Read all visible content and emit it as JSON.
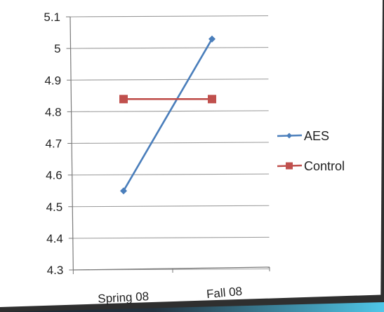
{
  "chart_data": {
    "type": "line",
    "categories": [
      "Spring 08",
      "Fall 08"
    ],
    "series": [
      {
        "name": "AES",
        "values": [
          4.55,
          5.03
        ],
        "color": "#4a7ebb",
        "marker": "diamond"
      },
      {
        "name": "Control",
        "values": [
          4.84,
          4.84
        ],
        "color": "#c0504d",
        "marker": "square"
      }
    ],
    "ylim": [
      4.3,
      5.1
    ],
    "yticks": [
      "4.3",
      "4.4",
      "4.5",
      "4.6",
      "4.7",
      "4.8",
      "4.9",
      "5",
      "5.1"
    ],
    "grid": true,
    "legend_position": "right"
  }
}
